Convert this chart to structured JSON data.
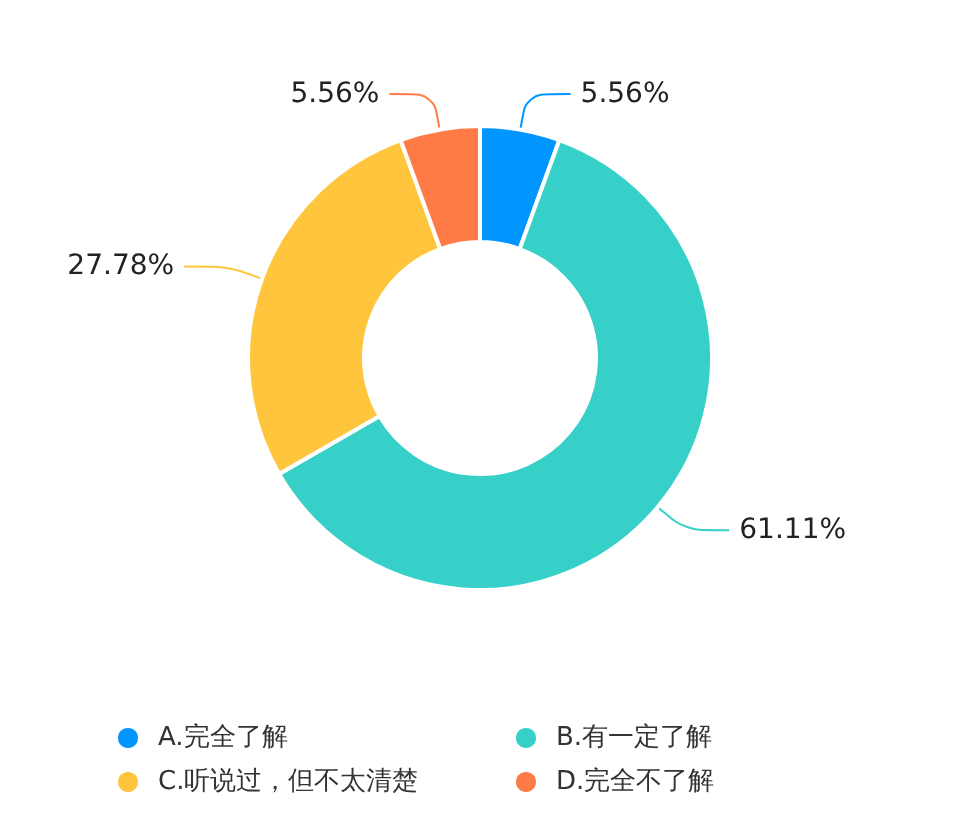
{
  "chart_data": {
    "type": "donut",
    "categories": [
      "A.完全了解",
      "B.有一定了解",
      "C.听说过，但不太清楚",
      "D.完全不了解"
    ],
    "values": [
      5.56,
      61.11,
      27.78,
      5.56
    ],
    "colors": [
      "#0095ff",
      "#37d0c9",
      "#ffc53d",
      "#ff7b46"
    ],
    "value_labels": [
      "5.56%",
      "61.11%",
      "27.78%",
      "5.56%"
    ],
    "legend": "bottom"
  }
}
